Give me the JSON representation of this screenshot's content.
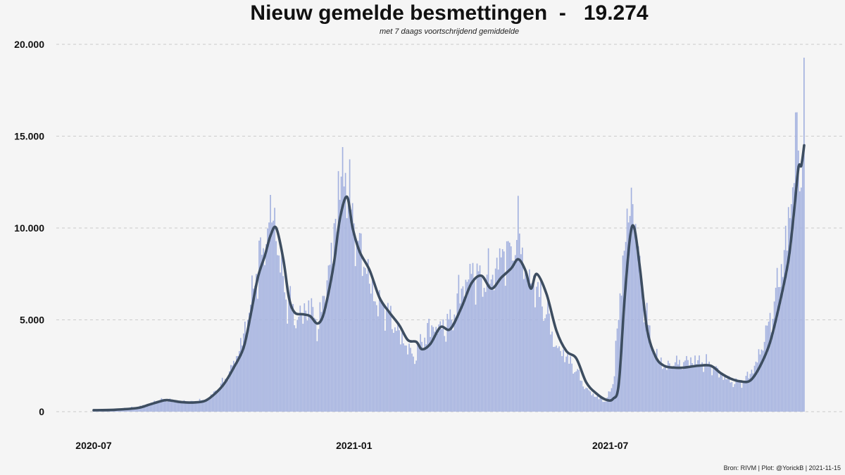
{
  "title": "Nieuw gemelde besmettingen  -   19.274",
  "subtitle": "met 7 daags voortschrijdend gemiddelde",
  "source": "Bron: RIVM | Plot: @YorickB |  2021-11-15",
  "colors": {
    "bars": "#a3b1df",
    "line": "#3d4d60",
    "grid": "#cccccc",
    "background": "#f5f5f5"
  },
  "chart_data": {
    "type": "bar",
    "title": "Nieuw gemelde besmettingen  -   19.274",
    "subtitle": "met 7 daags voortschrijdend gemiddelde",
    "x_start": "2020-07-01",
    "x_end": "2021-11-15",
    "ylim": [
      0,
      20000
    ],
    "yticks": [
      0,
      5000,
      10000,
      15000,
      20000
    ],
    "ytick_labels": [
      "0",
      "5.000",
      "10.000",
      "15.000",
      "20.000"
    ],
    "xticks": [
      "2020-07-01",
      "2021-01-01",
      "2021-07-01"
    ],
    "xtick_labels": [
      "2020-07",
      "2021-01",
      "2021-07"
    ],
    "grid": "horizontal dashed",
    "series": [
      {
        "kind": "bar",
        "points": [
          [
            "2020-07-01",
            100
          ],
          [
            "2020-07-15",
            120
          ],
          [
            "2020-08-01",
            250
          ],
          [
            "2020-08-10",
            450
          ],
          [
            "2020-08-20",
            650
          ],
          [
            "2020-08-25",
            600
          ],
          [
            "2020-09-01",
            550
          ],
          [
            "2020-09-10",
            500
          ],
          [
            "2020-09-20",
            700
          ],
          [
            "2020-09-28",
            1300
          ],
          [
            "2020-10-05",
            2200
          ],
          [
            "2020-10-12",
            3300
          ],
          [
            "2020-10-18",
            5000
          ],
          [
            "2020-10-24",
            7500
          ],
          [
            "2020-10-29",
            8900
          ],
          [
            "2020-11-02",
            10300
          ],
          [
            "2020-11-06",
            11100
          ],
          [
            "2020-11-09",
            8500
          ],
          [
            "2020-11-13",
            6500
          ],
          [
            "2020-11-18",
            5600
          ],
          [
            "2020-11-22",
            5000
          ],
          [
            "2020-11-28",
            5500
          ],
          [
            "2020-12-03",
            5700
          ],
          [
            "2020-12-07",
            4500
          ],
          [
            "2020-12-11",
            6300
          ],
          [
            "2020-12-15",
            8000
          ],
          [
            "2020-12-19",
            10500
          ],
          [
            "2020-12-23",
            12800
          ],
          [
            "2020-12-26",
            13000
          ],
          [
            "2020-12-30",
            11000
          ],
          [
            "2021-01-04",
            9300
          ],
          [
            "2021-01-10",
            7500
          ],
          [
            "2021-01-17",
            5800
          ],
          [
            "2021-01-24",
            5500
          ],
          [
            "2021-01-31",
            4400
          ],
          [
            "2021-02-07",
            3600
          ],
          [
            "2021-02-12",
            3000
          ],
          [
            "2021-02-18",
            3800
          ],
          [
            "2021-02-25",
            4700
          ],
          [
            "2021-03-04",
            4500
          ],
          [
            "2021-03-11",
            5000
          ],
          [
            "2021-03-18",
            6700
          ],
          [
            "2021-03-25",
            7500
          ],
          [
            "2021-04-01",
            7300
          ],
          [
            "2021-04-08",
            7200
          ],
          [
            "2021-04-15",
            8400
          ],
          [
            "2021-04-22",
            9000
          ],
          [
            "2021-04-28",
            9700
          ],
          [
            "2021-05-03",
            7500
          ],
          [
            "2021-05-10",
            6800
          ],
          [
            "2021-05-17",
            5300
          ],
          [
            "2021-05-24",
            3600
          ],
          [
            "2021-05-31",
            3000
          ],
          [
            "2021-06-07",
            2200
          ],
          [
            "2021-06-14",
            1300
          ],
          [
            "2021-06-21",
            800
          ],
          [
            "2021-06-28",
            550
          ],
          [
            "2021-07-03",
            1500
          ],
          [
            "2021-07-07",
            5000
          ],
          [
            "2021-07-10",
            8500
          ],
          [
            "2021-07-14",
            10300
          ],
          [
            "2021-07-17",
            11300
          ],
          [
            "2021-07-21",
            9000
          ],
          [
            "2021-07-26",
            5500
          ],
          [
            "2021-08-01",
            3300
          ],
          [
            "2021-08-08",
            2400
          ],
          [
            "2021-08-15",
            2500
          ],
          [
            "2021-08-22",
            2700
          ],
          [
            "2021-09-01",
            2800
          ],
          [
            "2021-09-10",
            2500
          ],
          [
            "2021-09-20",
            1900
          ],
          [
            "2021-09-27",
            1500
          ],
          [
            "2021-10-04",
            1700
          ],
          [
            "2021-10-11",
            2500
          ],
          [
            "2021-10-18",
            3800
          ],
          [
            "2021-10-25",
            6000
          ],
          [
            "2021-11-01",
            8800
          ],
          [
            "2021-11-06",
            11300
          ],
          [
            "2021-11-10",
            16300
          ],
          [
            "2021-11-12",
            12000
          ],
          [
            "2021-11-15",
            19274
          ]
        ]
      },
      {
        "kind": "line",
        "points": [
          [
            "2020-07-01",
            80
          ],
          [
            "2020-07-15",
            100
          ],
          [
            "2020-08-01",
            200
          ],
          [
            "2020-08-10",
            400
          ],
          [
            "2020-08-20",
            620
          ],
          [
            "2020-08-25",
            600
          ],
          [
            "2020-09-01",
            520
          ],
          [
            "2020-09-10",
            500
          ],
          [
            "2020-09-18",
            600
          ],
          [
            "2020-09-25",
            1000
          ],
          [
            "2020-10-01",
            1500
          ],
          [
            "2020-10-08",
            2400
          ],
          [
            "2020-10-15",
            3500
          ],
          [
            "2020-10-20",
            5300
          ],
          [
            "2020-10-25",
            7300
          ],
          [
            "2020-10-30",
            8500
          ],
          [
            "2020-11-03",
            9600
          ],
          [
            "2020-11-07",
            10000
          ],
          [
            "2020-11-12",
            8300
          ],
          [
            "2020-11-16",
            6200
          ],
          [
            "2020-11-20",
            5400
          ],
          [
            "2020-11-26",
            5300
          ],
          [
            "2020-12-01",
            5200
          ],
          [
            "2020-12-06",
            4800
          ],
          [
            "2020-12-10",
            5200
          ],
          [
            "2020-12-14",
            6500
          ],
          [
            "2020-12-18",
            8200
          ],
          [
            "2020-12-22",
            10500
          ],
          [
            "2020-12-27",
            11700
          ],
          [
            "2020-12-31",
            10000
          ],
          [
            "2021-01-05",
            8700
          ],
          [
            "2021-01-12",
            7700
          ],
          [
            "2021-01-19",
            6200
          ],
          [
            "2021-01-26",
            5400
          ],
          [
            "2021-02-02",
            4700
          ],
          [
            "2021-02-08",
            3900
          ],
          [
            "2021-02-14",
            3800
          ],
          [
            "2021-02-18",
            3400
          ],
          [
            "2021-02-24",
            3700
          ],
          [
            "2021-03-03",
            4600
          ],
          [
            "2021-03-10",
            4500
          ],
          [
            "2021-03-18",
            5700
          ],
          [
            "2021-03-25",
            7000
          ],
          [
            "2021-04-01",
            7400
          ],
          [
            "2021-04-08",
            6700
          ],
          [
            "2021-04-15",
            7300
          ],
          [
            "2021-04-22",
            7800
          ],
          [
            "2021-04-27",
            8300
          ],
          [
            "2021-05-02",
            7700
          ],
          [
            "2021-05-06",
            6700
          ],
          [
            "2021-05-10",
            7500
          ],
          [
            "2021-05-17",
            6400
          ],
          [
            "2021-05-24",
            4400
          ],
          [
            "2021-05-31",
            3300
          ],
          [
            "2021-06-07",
            2900
          ],
          [
            "2021-06-14",
            1600
          ],
          [
            "2021-06-21",
            1000
          ],
          [
            "2021-06-28",
            650
          ],
          [
            "2021-07-03",
            700
          ],
          [
            "2021-07-07",
            1500
          ],
          [
            "2021-07-11",
            6000
          ],
          [
            "2021-07-15",
            9500
          ],
          [
            "2021-07-18",
            10000
          ],
          [
            "2021-07-22",
            7800
          ],
          [
            "2021-07-27",
            4500
          ],
          [
            "2021-08-02",
            3000
          ],
          [
            "2021-08-08",
            2500
          ],
          [
            "2021-08-15",
            2400
          ],
          [
            "2021-08-22",
            2400
          ],
          [
            "2021-09-01",
            2500
          ],
          [
            "2021-09-10",
            2500
          ],
          [
            "2021-09-17",
            2100
          ],
          [
            "2021-09-24",
            1800
          ],
          [
            "2021-10-01",
            1650
          ],
          [
            "2021-10-08",
            1700
          ],
          [
            "2021-10-15",
            2500
          ],
          [
            "2021-10-22",
            3800
          ],
          [
            "2021-10-29",
            6000
          ],
          [
            "2021-11-04",
            8300
          ],
          [
            "2021-11-08",
            11000
          ],
          [
            "2021-11-11",
            13300
          ],
          [
            "2021-11-13",
            13400
          ],
          [
            "2021-11-15",
            14500
          ]
        ]
      }
    ]
  }
}
